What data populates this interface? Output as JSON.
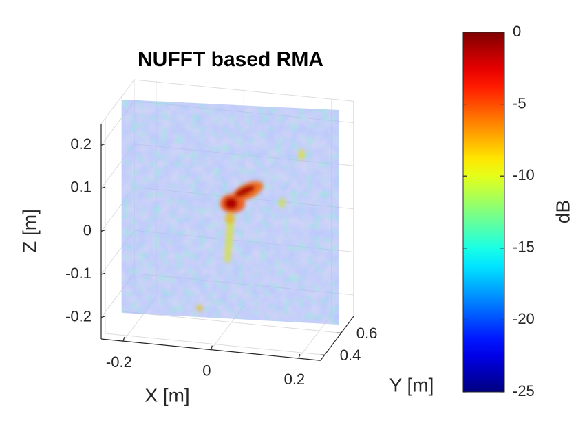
{
  "chart_data": {
    "type": "volume",
    "title": "NUFFT based RMA",
    "x_label": "X [m]",
    "y_label": "Y [m]",
    "z_label": "Z [m]",
    "xlim": [
      -0.25,
      0.25
    ],
    "xticks": [
      -0.2,
      0,
      0.2
    ],
    "ylim": [
      0.35,
      0.75
    ],
    "yticks": [
      0.4,
      0.6
    ],
    "zlim": [
      -0.25,
      0.25
    ],
    "zticks": [
      -0.2,
      -0.1,
      0,
      0.1,
      0.2
    ],
    "grid": true,
    "colorbar": {
      "label": "dB",
      "lim": [
        -25,
        0
      ],
      "ticks": [
        -25,
        -20,
        -15,
        -10,
        -5,
        0
      ],
      "colormap": "jet"
    }
  }
}
